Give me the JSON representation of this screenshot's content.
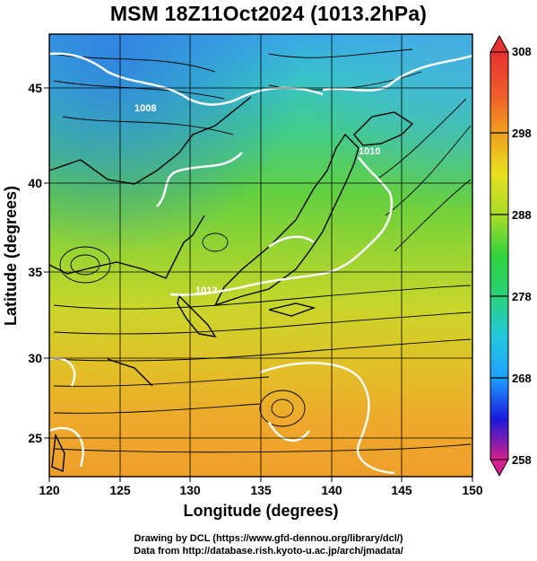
{
  "title": "MSM 18Z11Oct2024 (1013.2hPa)",
  "axes": {
    "xlabel": "Longitude (degrees)",
    "ylabel": "Latitude  (degrees)",
    "xlim": [
      120,
      150
    ],
    "ylim": [
      22.5,
      47.5
    ],
    "xticks": [
      "120",
      "125",
      "130",
      "135",
      "140",
      "145",
      "150"
    ],
    "yticks": [
      "25",
      "30",
      "35",
      "40",
      "45"
    ]
  },
  "colorbar": {
    "min": 258,
    "max": 308,
    "ticks": [
      "308",
      "298",
      "288",
      "278",
      "268",
      "258"
    ],
    "colors": [
      "#d4208c",
      "#1a1adc",
      "#1ea0ff",
      "#22c8e0",
      "#28d27a",
      "#30d23c",
      "#a8dc28",
      "#e8e01e",
      "#f0a01e",
      "#ee5a2a",
      "#e83232"
    ]
  },
  "contours": {
    "labels": [
      "1012",
      "1010",
      "1008"
    ]
  },
  "credits": {
    "line1": "Drawing by DCL (https://www.gfd-dennou.org/library/dcl/)",
    "line2": "Data from http://database.rish.kyoto-u.ac.jp/arch/jmadata/"
  }
}
